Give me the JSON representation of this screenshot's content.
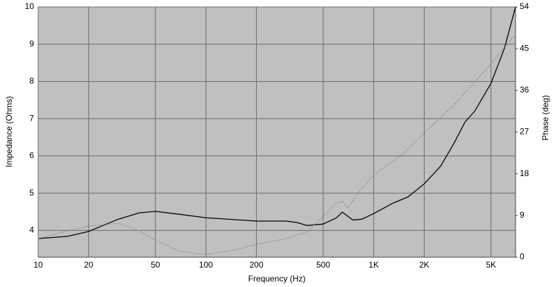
{
  "chart_data": {
    "type": "line",
    "xlabel": "Frequency (Hz)",
    "ylabel": "Impedance (Ohms)",
    "y2label": "Phase (deg)",
    "xscale": "log",
    "grid": true,
    "xlim": [
      10,
      7000
    ],
    "xticks": [
      10,
      20,
      50,
      100,
      200,
      500,
      {
        "value": 1000,
        "label": "1K"
      },
      {
        "value": 2000,
        "label": "2K"
      },
      {
        "value": 5000,
        "label": "5K"
      }
    ],
    "ylim": [
      3.28,
      10
    ],
    "yticks": [
      4,
      5,
      6,
      7,
      8,
      9,
      10
    ],
    "y2lim": [
      0,
      54
    ],
    "y2ticks": [
      0,
      9,
      18,
      27,
      36,
      45,
      54
    ],
    "series": [
      {
        "name": "Impedance",
        "color": "#000000",
        "x": [
          10,
          15,
          20,
          30,
          40,
          50,
          70,
          100,
          200,
          300,
          350,
          400,
          500,
          600,
          650,
          700,
          750,
          850,
          1000,
          1300,
          1600,
          2000,
          2500,
          3000,
          3500,
          4000,
          5000,
          6000,
          7000
        ],
        "values": [
          3.78,
          3.84,
          3.97,
          4.3,
          4.47,
          4.51,
          4.43,
          4.34,
          4.25,
          4.25,
          4.21,
          4.13,
          4.17,
          4.34,
          4.49,
          4.38,
          4.28,
          4.3,
          4.45,
          4.73,
          4.9,
          5.25,
          5.72,
          6.33,
          6.91,
          7.2,
          7.95,
          8.88,
          10
        ]
      },
      {
        "name": "Phase",
        "color": "#808080",
        "axis": "y2",
        "x": [
          10,
          15,
          20,
          30,
          40,
          50,
          70,
          100,
          150,
          200,
          300,
          400,
          500,
          600,
          650,
          700,
          800,
          1000,
          1500,
          2000,
          3000,
          4000,
          5000,
          6000,
          7000
        ],
        "values": [
          4.0,
          5.7,
          6.7,
          7.3,
          5.7,
          3.6,
          1.3,
          0.6,
          1.6,
          2.8,
          4.0,
          5.5,
          8.8,
          11.7,
          12.1,
          10.6,
          13.6,
          17.8,
          22.3,
          26.8,
          32.8,
          37.8,
          41.7,
          45.3,
          48.0
        ]
      }
    ]
  }
}
